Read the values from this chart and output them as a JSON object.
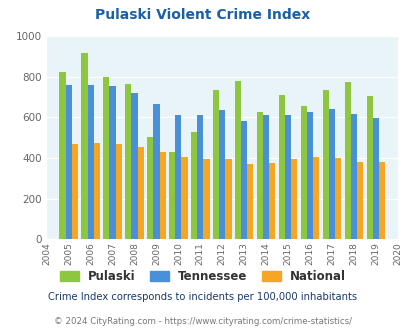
{
  "title": "Pulaski Violent Crime Index",
  "years": [
    2004,
    2005,
    2006,
    2007,
    2008,
    2009,
    2010,
    2011,
    2012,
    2013,
    2014,
    2015,
    2016,
    2017,
    2018,
    2019,
    2020
  ],
  "pulaski": [
    null,
    825,
    920,
    800,
    765,
    505,
    428,
    530,
    735,
    780,
    628,
    710,
    658,
    733,
    775,
    705,
    null
  ],
  "tennessee": [
    null,
    760,
    760,
    755,
    720,
    665,
    610,
    610,
    638,
    582,
    610,
    610,
    628,
    643,
    618,
    598,
    null
  ],
  "national": [
    null,
    468,
    473,
    467,
    455,
    432,
    407,
    397,
    397,
    370,
    376,
    395,
    403,
    398,
    383,
    383,
    null
  ],
  "colors": {
    "pulaski": "#8dc63f",
    "tennessee": "#4a90d9",
    "national": "#f5a623"
  },
  "ylim": [
    0,
    1000
  ],
  "yticks": [
    0,
    200,
    400,
    600,
    800,
    1000
  ],
  "bg_color": "#e8f4f8",
  "grid_color": "#ffffff",
  "subtitle": "Crime Index corresponds to incidents per 100,000 inhabitants",
  "footer": "© 2024 CityRating.com - https://www.cityrating.com/crime-statistics/",
  "title_color": "#1a5fa8",
  "subtitle_color": "#1a3a6b",
  "footer_color": "#777777",
  "footer_link_color": "#4a90d9"
}
